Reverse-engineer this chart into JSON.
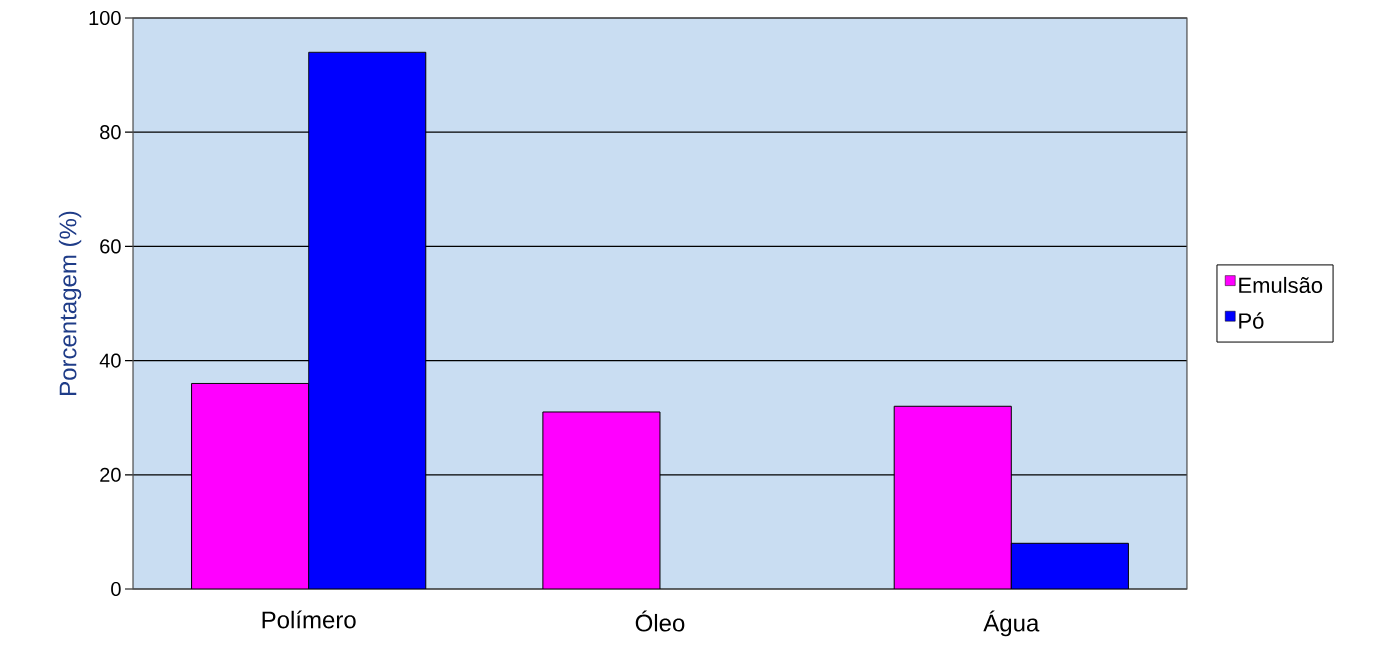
{
  "chart_data": {
    "type": "bar",
    "ylabel": "Porcentagem (%)",
    "categories": [
      "Polímero",
      "Óleo",
      "Água"
    ],
    "series": [
      {
        "name": "Emulsão",
        "color": "#ff00ff",
        "values": [
          36,
          31,
          32
        ]
      },
      {
        "name": "Pó",
        "color": "#0000ff",
        "values": [
          94,
          null,
          8
        ]
      }
    ],
    "ylim": [
      0,
      100
    ],
    "yticks": [
      0,
      20,
      40,
      60,
      80,
      100
    ],
    "grid": "y",
    "legend": "right"
  }
}
